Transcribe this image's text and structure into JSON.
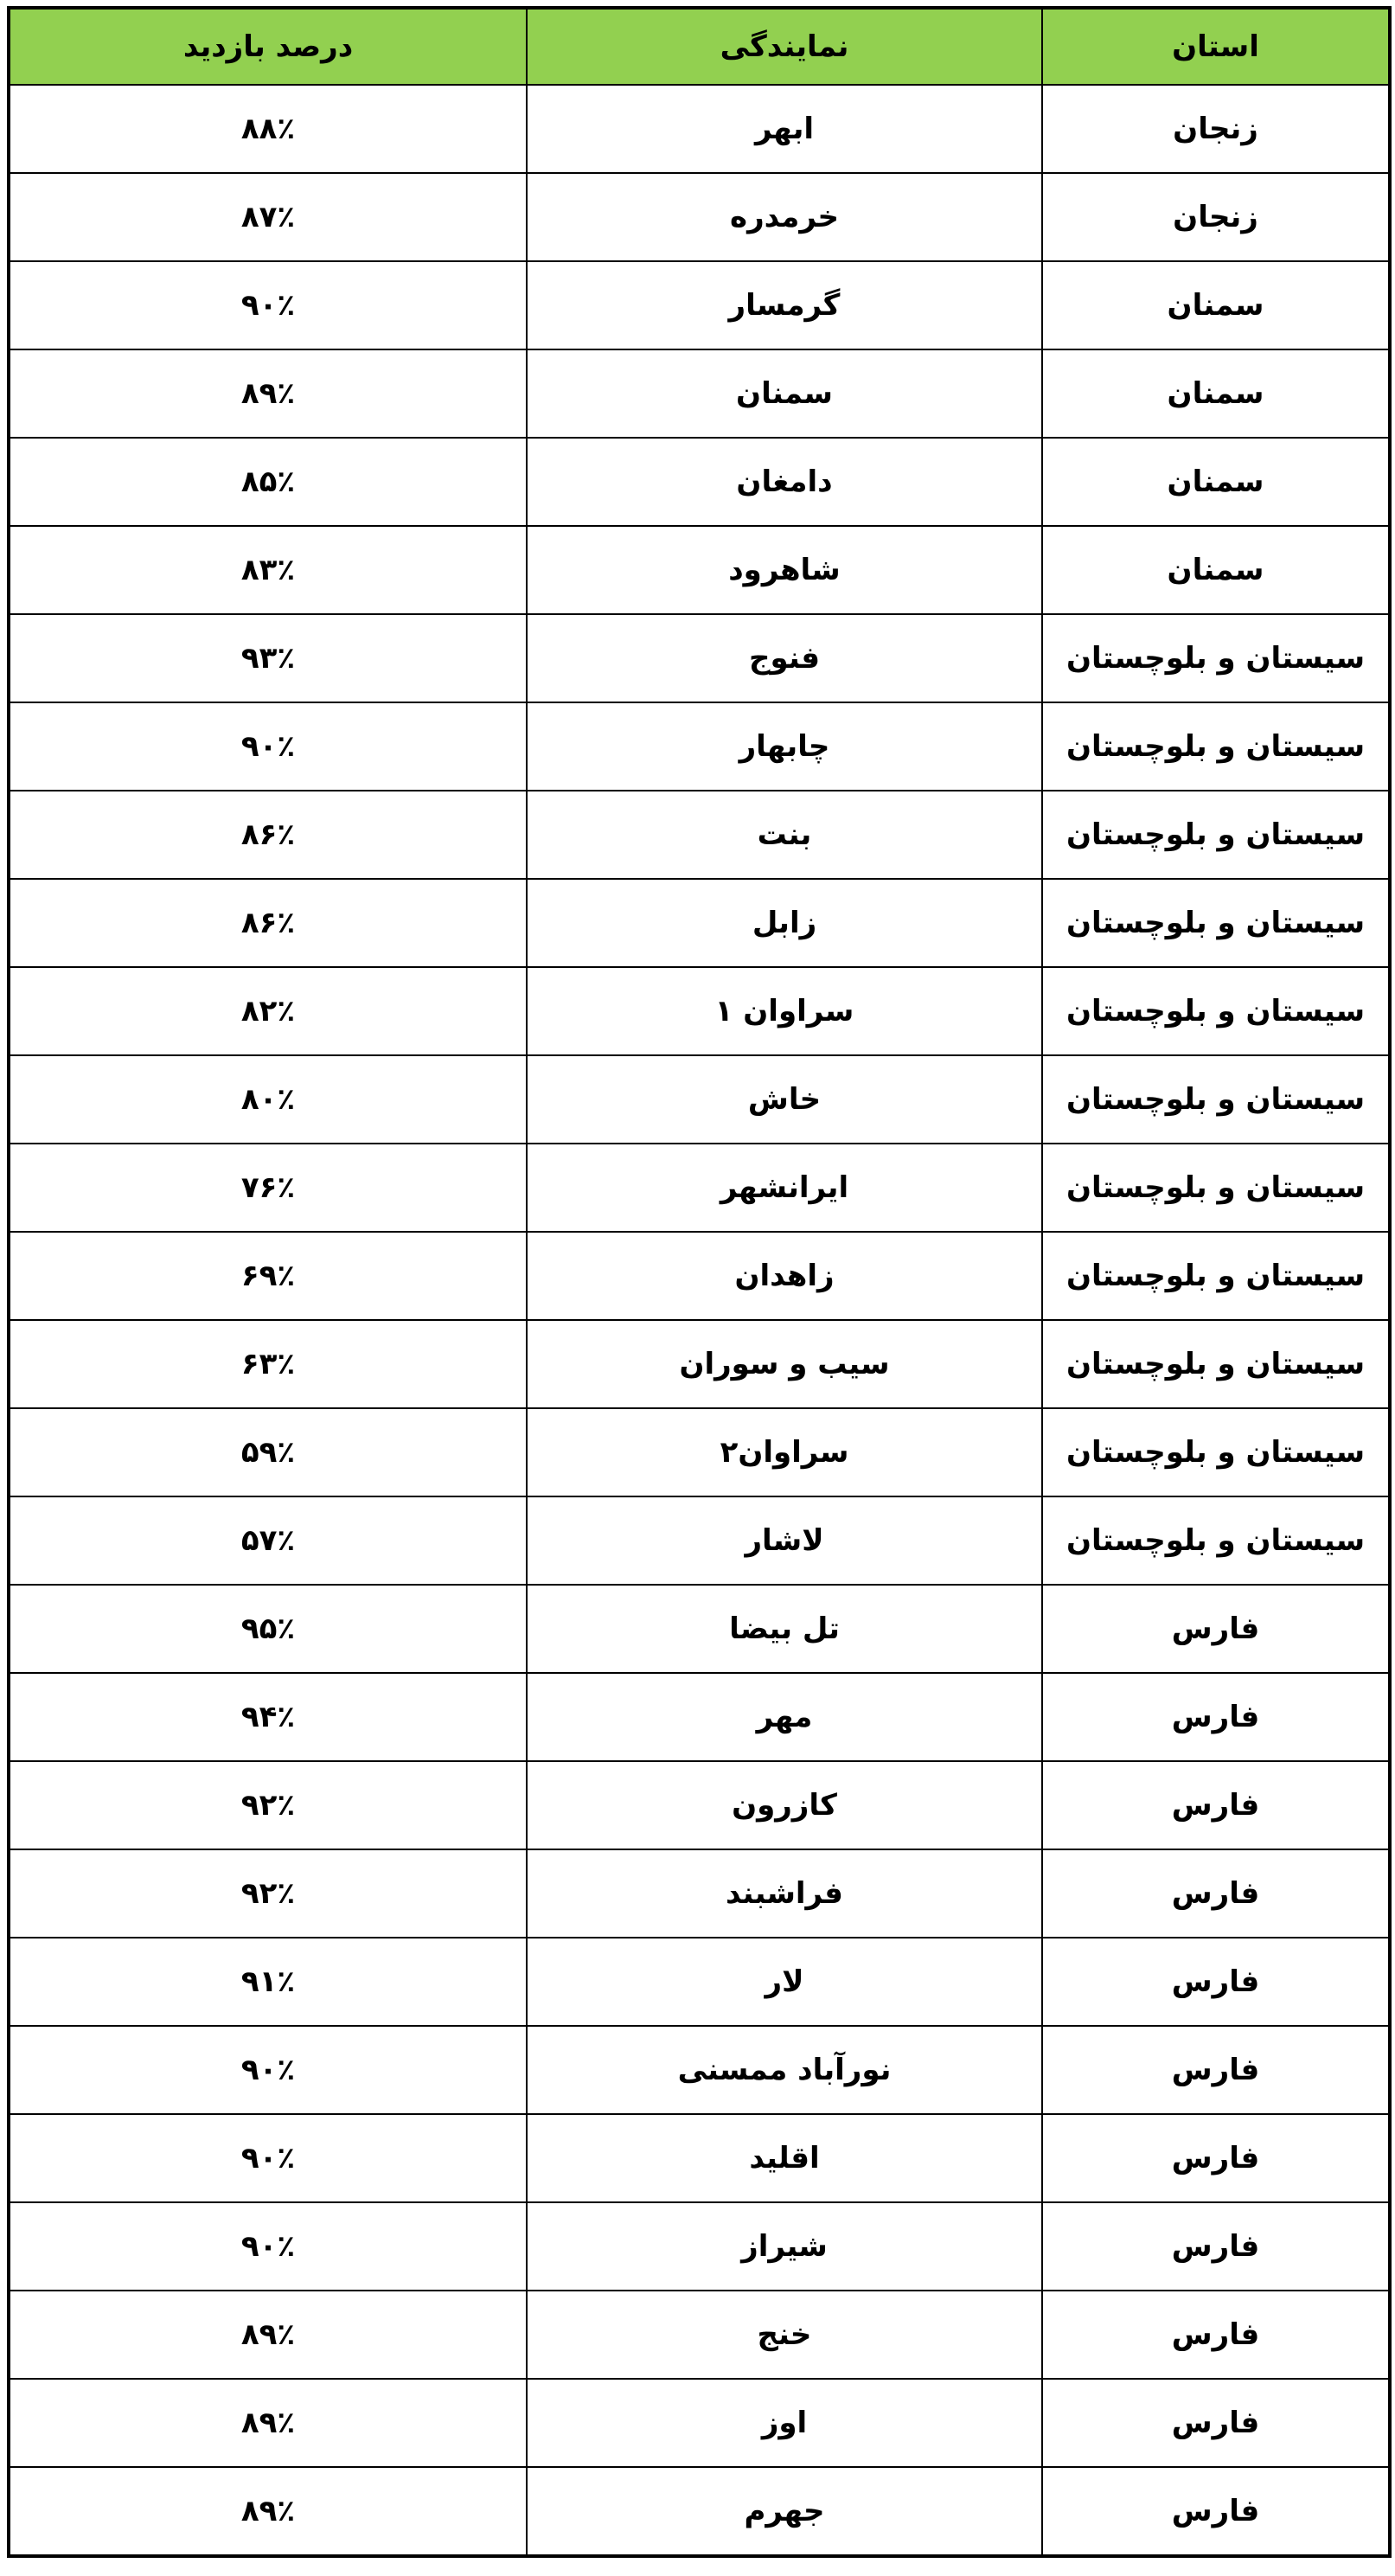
{
  "table": {
    "header": [
      "استان",
      "نمایندگی",
      "درصد بازدید"
    ],
    "rows": [
      [
        "زنجان",
        "ابهر",
        "۸۸٪"
      ],
      [
        "زنجان",
        "خرمدره",
        "۸۷٪"
      ],
      [
        "سمنان",
        "گرمسار",
        "۹۰٪"
      ],
      [
        "سمنان",
        "سمنان",
        "۸۹٪"
      ],
      [
        "سمنان",
        "دامغان",
        "۸۵٪"
      ],
      [
        "سمنان",
        "شاهرود",
        "۸۳٪"
      ],
      [
        "سیستان و بلوچستان",
        "فنوج",
        "۹۳٪"
      ],
      [
        "سیستان و بلوچستان",
        "چابهار",
        "۹۰٪"
      ],
      [
        "سیستان و بلوچستان",
        "بنت",
        "۸۶٪"
      ],
      [
        "سیستان و بلوچستان",
        "زابل",
        "۸۶٪"
      ],
      [
        "سیستان و بلوچستان",
        "سراوان ۱",
        "۸۲٪"
      ],
      [
        "سیستان و بلوچستان",
        "خاش",
        "۸۰٪"
      ],
      [
        "سیستان و بلوچستان",
        "ایرانشهر",
        "۷۶٪"
      ],
      [
        "سیستان و بلوچستان",
        "زاهدان",
        "۶۹٪"
      ],
      [
        "سیستان و بلوچستان",
        "سیب و سوران",
        "۶۳٪"
      ],
      [
        "سیستان و بلوچستان",
        "سراوان۲",
        "۵۹٪"
      ],
      [
        "سیستان و بلوچستان",
        "لاشار",
        "۵۷٪"
      ],
      [
        "فارس",
        "تل بیضا",
        "۹۵٪"
      ],
      [
        "فارس",
        "مهر",
        "۹۴٪"
      ],
      [
        "فارس",
        "کازرون",
        "۹۲٪"
      ],
      [
        "فارس",
        "فراشبند",
        "۹۲٪"
      ],
      [
        "فارس",
        "لار",
        "۹۱٪"
      ],
      [
        "فارس",
        "نورآباد ممسنی",
        "۹۰٪"
      ],
      [
        "فارس",
        "اقلید",
        "۹۰٪"
      ],
      [
        "فارس",
        "شیراز",
        "۹۰٪"
      ],
      [
        "فارس",
        "خنج",
        "۸۹٪"
      ],
      [
        "فارس",
        "اوز",
        "۸۹٪"
      ],
      [
        "فارس",
        "جهرم",
        "۸۹٪"
      ]
    ]
  }
}
